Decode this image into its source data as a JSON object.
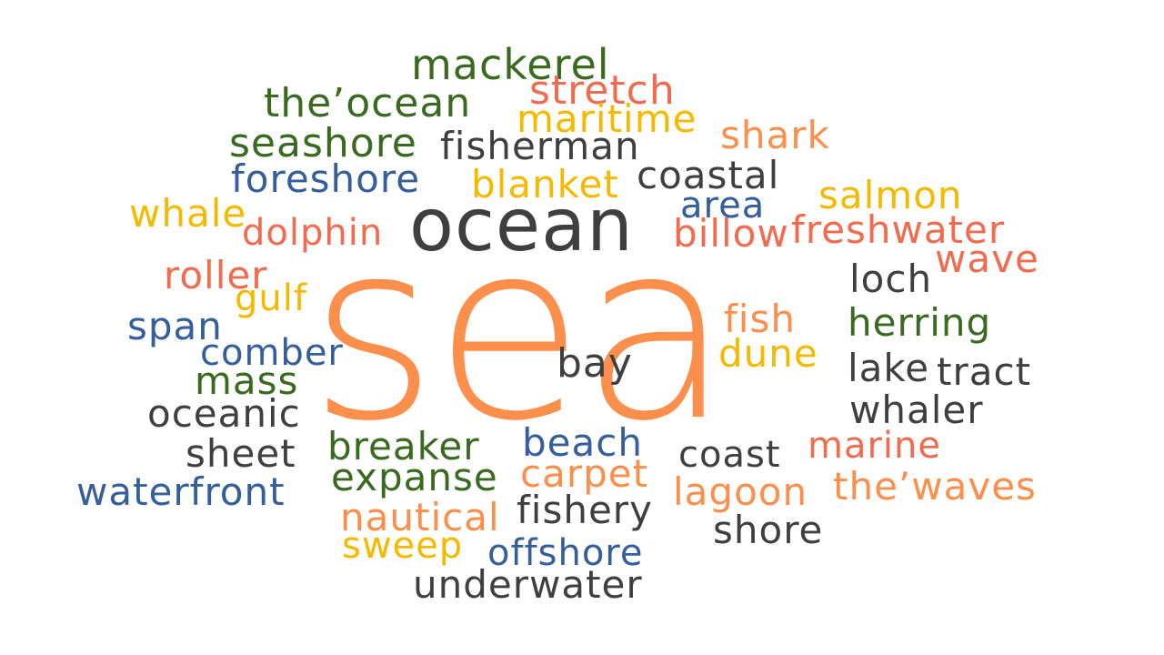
{
  "colors": {
    "orange": "#fd8f4c",
    "coral": "#f26b4f",
    "yellow": "#f5ba00",
    "green": "#3a6a1f",
    "blue": "#345e9c",
    "dark": "#3f3f3f"
  },
  "words": [
    {
      "text": "sea",
      "color": "orange"
    },
    {
      "text": "ocean",
      "color": "dark"
    },
    {
      "text": "mackerel",
      "color": "green"
    },
    {
      "text": "stretch",
      "color": "coral"
    },
    {
      "text": "the’ocean",
      "color": "green"
    },
    {
      "text": "maritime",
      "color": "yellow"
    },
    {
      "text": "shark",
      "color": "orange"
    },
    {
      "text": "seashore",
      "color": "green"
    },
    {
      "text": "fisherman",
      "color": "dark"
    },
    {
      "text": "foreshore",
      "color": "blue"
    },
    {
      "text": "coastal",
      "color": "dark"
    },
    {
      "text": "blanket",
      "color": "yellow"
    },
    {
      "text": "salmon",
      "color": "yellow"
    },
    {
      "text": "area",
      "color": "blue"
    },
    {
      "text": "whale",
      "color": "yellow"
    },
    {
      "text": "dolphin",
      "color": "coral"
    },
    {
      "text": "billow",
      "color": "coral"
    },
    {
      "text": "freshwater",
      "color": "coral"
    },
    {
      "text": "wave",
      "color": "coral"
    },
    {
      "text": "roller",
      "color": "coral"
    },
    {
      "text": "loch",
      "color": "dark"
    },
    {
      "text": "gulf",
      "color": "yellow"
    },
    {
      "text": "fish",
      "color": "orange"
    },
    {
      "text": "herring",
      "color": "green"
    },
    {
      "text": "span",
      "color": "blue"
    },
    {
      "text": "dune",
      "color": "yellow"
    },
    {
      "text": "comber",
      "color": "blue"
    },
    {
      "text": "bay",
      "color": "dark"
    },
    {
      "text": "lake",
      "color": "dark"
    },
    {
      "text": "tract",
      "color": "dark"
    },
    {
      "text": "mass",
      "color": "green"
    },
    {
      "text": "whaler",
      "color": "dark"
    },
    {
      "text": "oceanic",
      "color": "dark"
    },
    {
      "text": "beach",
      "color": "blue"
    },
    {
      "text": "breaker",
      "color": "green"
    },
    {
      "text": "marine",
      "color": "coral"
    },
    {
      "text": "sheet",
      "color": "dark"
    },
    {
      "text": "coast",
      "color": "dark"
    },
    {
      "text": "carpet",
      "color": "orange"
    },
    {
      "text": "expanse",
      "color": "green"
    },
    {
      "text": "the’waves",
      "color": "orange"
    },
    {
      "text": "waterfront",
      "color": "blue"
    },
    {
      "text": "lagoon",
      "color": "orange"
    },
    {
      "text": "fishery",
      "color": "dark"
    },
    {
      "text": "nautical",
      "color": "orange"
    },
    {
      "text": "shore",
      "color": "dark"
    },
    {
      "text": "sweep",
      "color": "yellow"
    },
    {
      "text": "offshore",
      "color": "blue"
    },
    {
      "text": "underwater",
      "color": "dark"
    }
  ]
}
